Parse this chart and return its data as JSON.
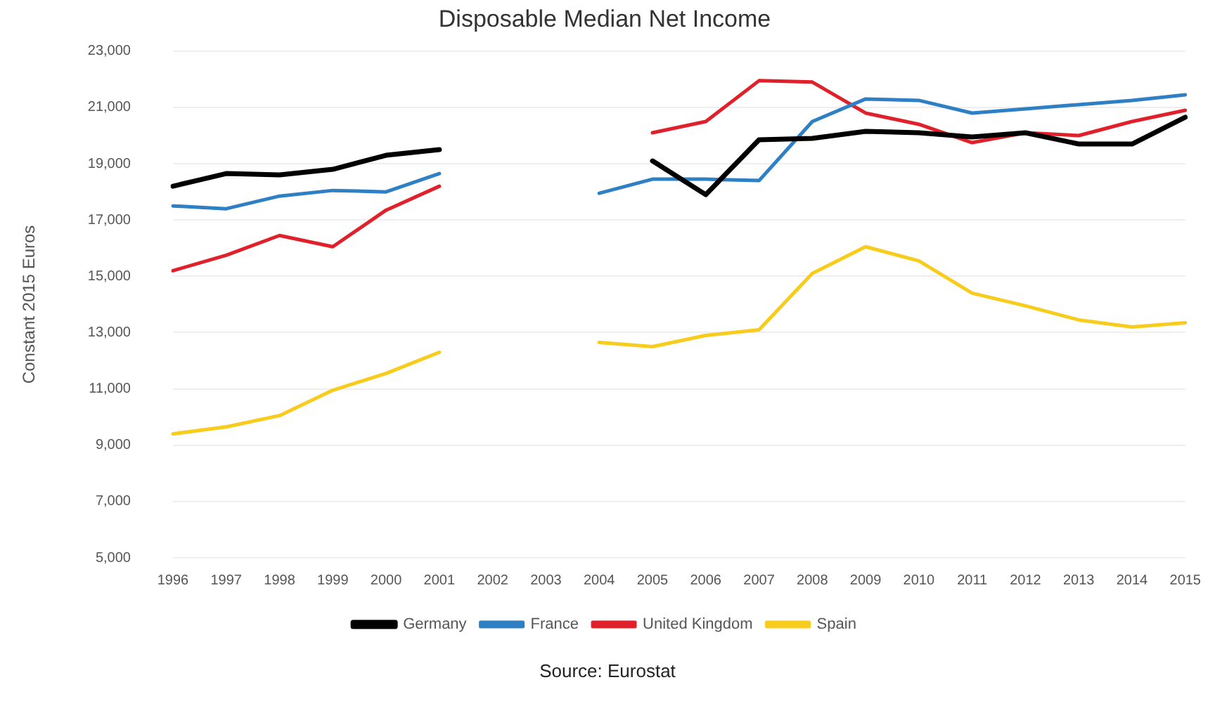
{
  "chart_data": {
    "type": "line",
    "title": "Disposable Median Net Income",
    "ylabel": "Constant 2015 Euros",
    "categories": [
      "1996",
      "1997",
      "1998",
      "1999",
      "2000",
      "2001",
      "2002",
      "2003",
      "2004",
      "2005",
      "2006",
      "2007",
      "2008",
      "2009",
      "2010",
      "2011",
      "2012",
      "2013",
      "2014",
      "2015"
    ],
    "series": [
      {
        "name": "Germany",
        "color": "#000000",
        "values": [
          18200,
          18650,
          18600,
          18800,
          19300,
          19500,
          null,
          null,
          null,
          19100,
          17900,
          19850,
          19900,
          20150,
          20100,
          19950,
          20100,
          19700,
          19700,
          20650
        ]
      },
      {
        "name": "France",
        "color": "#2e7fc4",
        "values": [
          17500,
          17400,
          17850,
          18050,
          18000,
          18650,
          null,
          null,
          17950,
          18450,
          18450,
          18400,
          20500,
          21300,
          21250,
          20800,
          20950,
          21100,
          21250,
          21450
        ]
      },
      {
        "name": "United Kingdom",
        "color": "#e0202a",
        "values": [
          15200,
          15750,
          16450,
          16050,
          17350,
          18200,
          null,
          null,
          null,
          20100,
          20500,
          21950,
          21900,
          20800,
          20400,
          19750,
          20100,
          20000,
          20500,
          20900
        ]
      },
      {
        "name": "Spain",
        "color": "#f7cc1c",
        "values": [
          9400,
          9650,
          10050,
          10950,
          11550,
          12300,
          null,
          null,
          12650,
          12500,
          12900,
          13100,
          15100,
          16050,
          15550,
          14400,
          13950,
          13450,
          13200,
          13350
        ]
      }
    ],
    "ylim": [
      5000,
      23000
    ],
    "yticks": [
      {
        "value": 5000,
        "label": "5,000"
      },
      {
        "value": 7000,
        "label": "7,000"
      },
      {
        "value": 9000,
        "label": "9,000"
      },
      {
        "value": 11000,
        "label": "11,000"
      },
      {
        "value": 13000,
        "label": "13,000"
      },
      {
        "value": 15000,
        "label": "15,000"
      },
      {
        "value": 17000,
        "label": "17,000"
      },
      {
        "value": 19000,
        "label": "19,000"
      },
      {
        "value": 21000,
        "label": "21,000"
      },
      {
        "value": 23000,
        "label": "23,000"
      }
    ],
    "grid": "y",
    "legend": "bottom",
    "marker": "none",
    "line_style": "solid",
    "annotations": [
      "Source: Eurostat"
    ]
  }
}
